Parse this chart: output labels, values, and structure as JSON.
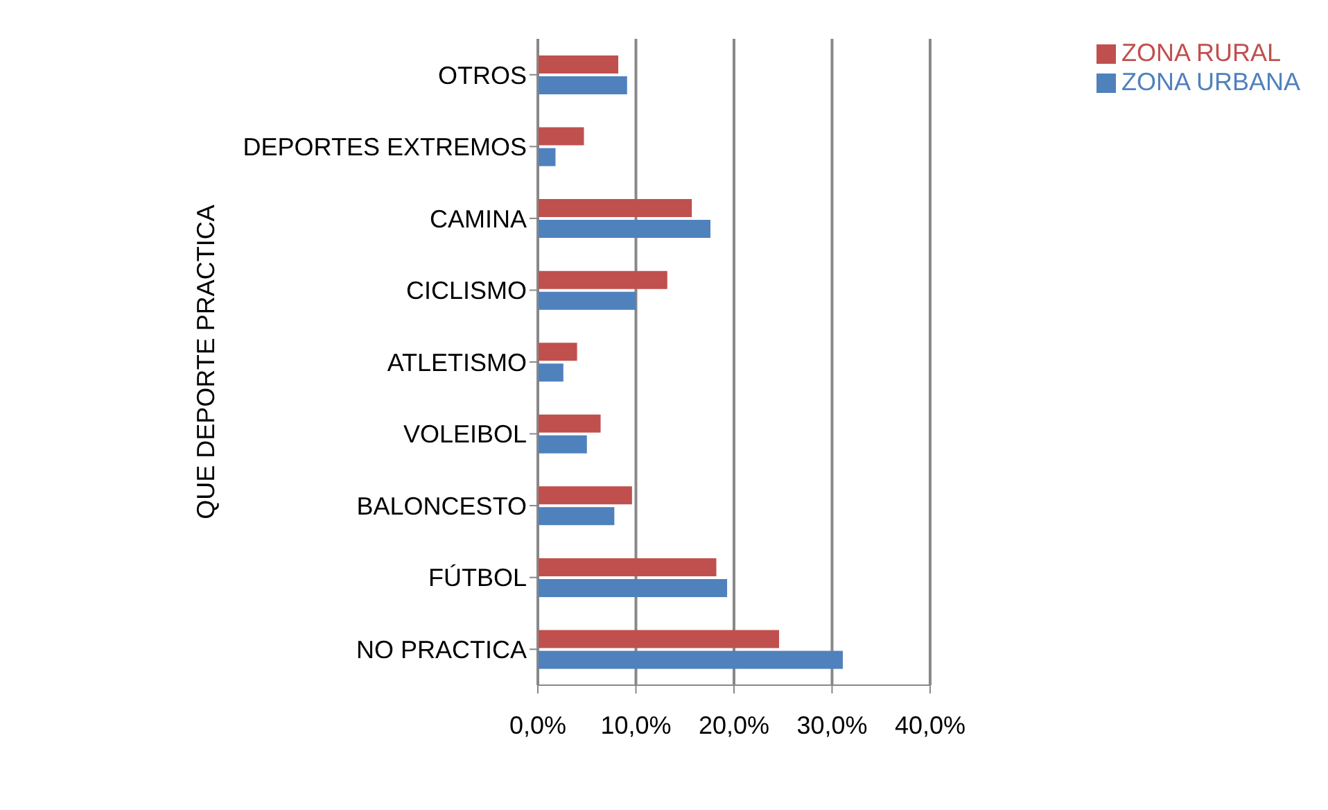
{
  "chart_data": {
    "type": "bar",
    "orientation": "horizontal",
    "ylabel": "QUE DEPORTE PRACTICA",
    "categories": [
      "OTROS",
      "DEPORTES EXTREMOS",
      "CAMINA",
      "CICLISMO",
      "ATLETISMO",
      "VOLEIBOL",
      "BALONCESTO",
      "FÚTBOL",
      "NO PRACTICA"
    ],
    "series": [
      {
        "name": "ZONA RURAL",
        "color": "#c0504d",
        "values": [
          8.2,
          4.7,
          15.7,
          13.2,
          4.0,
          6.4,
          9.6,
          18.2,
          24.6
        ]
      },
      {
        "name": "ZONA URBANA",
        "color": "#4f81bd",
        "values": [
          9.1,
          1.8,
          17.6,
          10.0,
          2.6,
          5.0,
          7.8,
          19.3,
          31.1
        ]
      }
    ],
    "xlim": [
      0,
      40
    ],
    "xticks": [
      {
        "value": 0,
        "label": "0,0%"
      },
      {
        "value": 10,
        "label": "10,0%"
      },
      {
        "value": 20,
        "label": "20,0%"
      },
      {
        "value": 30,
        "label": "30,0%"
      },
      {
        "value": 40,
        "label": "40,0%"
      }
    ],
    "grid": "x",
    "legend": "top right"
  }
}
